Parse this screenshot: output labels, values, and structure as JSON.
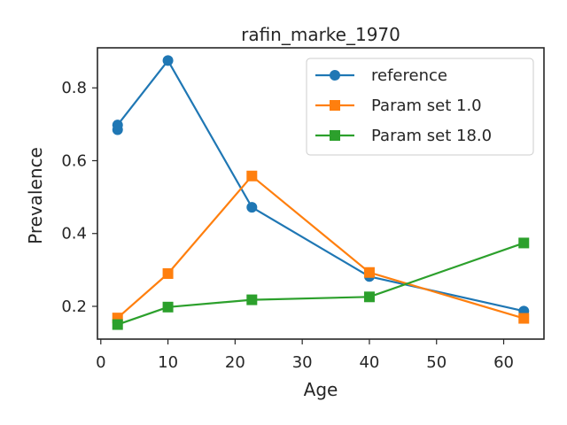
{
  "chart_data": {
    "type": "line",
    "title": "rafin_marke_1970",
    "xlabel": "Age",
    "ylabel": "Prevalence",
    "xlim": [
      -0.5,
      66
    ],
    "ylim": [
      0.11,
      0.91
    ],
    "xticks": [
      0,
      10,
      20,
      30,
      40,
      50,
      60
    ],
    "yticks": [
      0.2,
      0.4,
      0.6,
      0.8
    ],
    "xtick_labels": [
      "0",
      "10",
      "20",
      "30",
      "40",
      "50",
      "60"
    ],
    "ytick_labels": [
      "0.2",
      "0.4",
      "0.6",
      "0.8"
    ],
    "grid": false,
    "legend_position": "top-right",
    "series": [
      {
        "name": "reference",
        "color": "#1f77b4",
        "marker": "circle",
        "x": [
          2.5,
          2.5,
          10,
          22.5,
          40,
          63
        ],
        "y": [
          0.685,
          0.698,
          0.875,
          0.472,
          0.282,
          0.187
        ]
      },
      {
        "name": "Param set 1.0",
        "color": "#ff7f0e",
        "marker": "square",
        "x": [
          2.5,
          10,
          22.5,
          40,
          63
        ],
        "y": [
          0.168,
          0.29,
          0.558,
          0.293,
          0.167
        ]
      },
      {
        "name": "Param set 18.0",
        "color": "#2ca02c",
        "marker": "square",
        "x": [
          2.5,
          10,
          22.5,
          40,
          63
        ],
        "y": [
          0.15,
          0.198,
          0.218,
          0.226,
          0.374
        ]
      }
    ]
  }
}
